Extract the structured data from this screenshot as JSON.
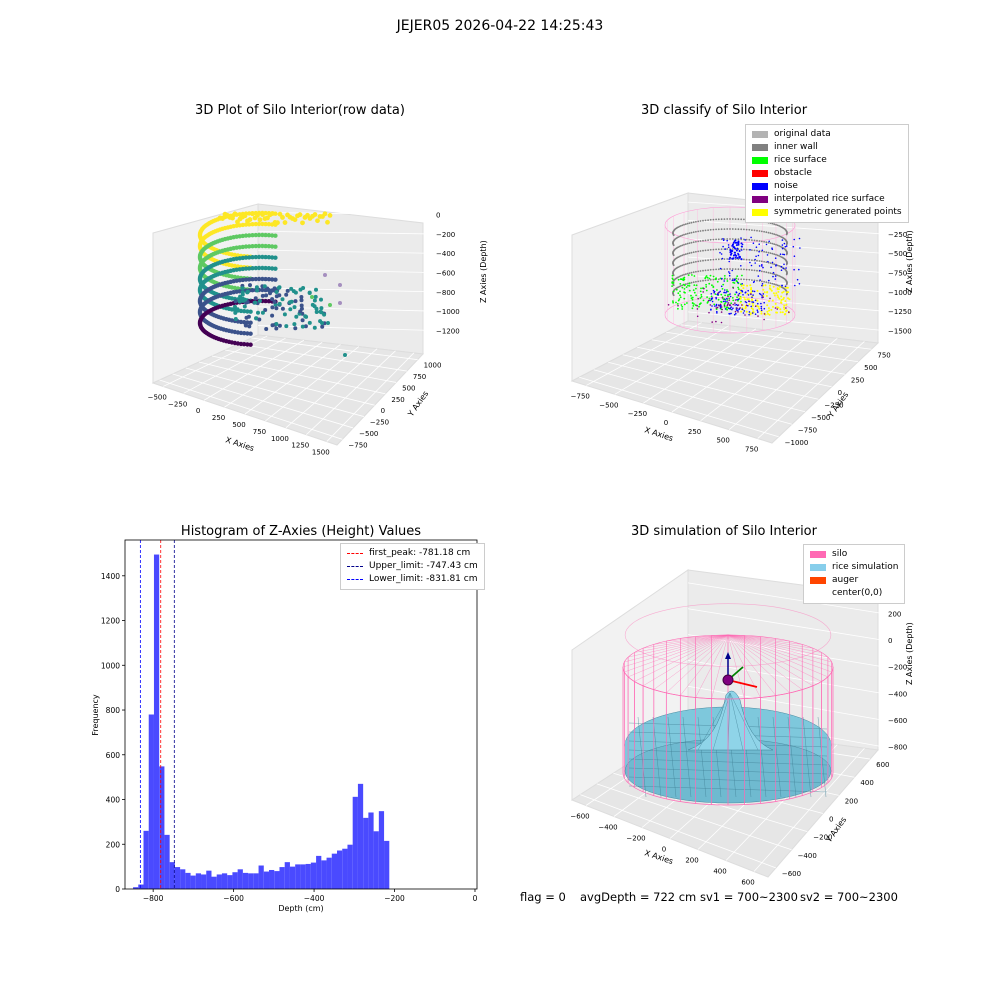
{
  "suptitle": "JEJER05 2026-04-22 14:25:43",
  "footer": {
    "flag": "flag = 0",
    "avg_depth": "avgDepth = 722 cm",
    "sv1": "sv1 = 700~2300",
    "sv2": "sv2 = 700~2300"
  },
  "chart_data": [
    {
      "type": "scatter",
      "title": "3D Plot of Silo Interior(row data)",
      "xlabel": "X Axies",
      "ylabel": "Y Axies",
      "zlabel": "Z Axies (Depth)",
      "x_ticks": [
        "−500",
        "−250",
        "0",
        "250",
        "500",
        "750",
        "1000",
        "1250",
        "1500"
      ],
      "y_ticks": [
        "−750",
        "−500",
        "−250",
        "0",
        "250",
        "500",
        "750",
        "1000"
      ],
      "z_ticks": [
        "0",
        "−200",
        "−400",
        "−600",
        "−800",
        "−1000",
        "−1200"
      ],
      "colormap": "viridis"
    },
    {
      "type": "scatter",
      "title": "3D classify of Silo Interior",
      "xlabel": "X Axies",
      "ylabel": "Y Axies",
      "zlabel": "Z Axies (Depth)",
      "x_ticks": [
        "−750",
        "−500",
        "−250",
        "0",
        "250",
        "500",
        "750"
      ],
      "y_ticks": [
        "−1000",
        "−750",
        "−500",
        "−250",
        "0",
        "250",
        "500",
        "750"
      ],
      "z_ticks": [
        "0",
        "−250",
        "−500",
        "−750",
        "−1000",
        "−1250",
        "−1500"
      ],
      "legend": [
        {
          "label": "original data",
          "color": "#b3b3b3"
        },
        {
          "label": "inner wall",
          "color": "#808080"
        },
        {
          "label": "rice surface",
          "color": "#00ff00"
        },
        {
          "label": "obstacle",
          "color": "#ff0000"
        },
        {
          "label": "noise",
          "color": "#0000ff"
        },
        {
          "label": "interpolated rice surface",
          "color": "#800080"
        },
        {
          "label": "symmetric generated points",
          "color": "#ffff00"
        }
      ],
      "legend_position": "top-right"
    },
    {
      "type": "bar",
      "title": "Histogram of Z-Axies (Height) Values",
      "xlabel": "Depth (cm)",
      "ylabel": "Frequency",
      "xlim": [
        -870,
        5
      ],
      "ylim": [
        0,
        1560
      ],
      "x_ticks": [
        -800,
        -600,
        -400,
        -200,
        0
      ],
      "y_ticks": [
        0,
        200,
        400,
        600,
        800,
        1000,
        1200,
        1400
      ],
      "bin_width": 13,
      "bin_start": -850,
      "values": [
        8,
        20,
        260,
        780,
        1495,
        548,
        242,
        120,
        98,
        88,
        72,
        60,
        70,
        65,
        82,
        55,
        65,
        70,
        62,
        75,
        88,
        72,
        70,
        70,
        105,
        78,
        85,
        80,
        98,
        120,
        100,
        110,
        110,
        112,
        118,
        148,
        128,
        140,
        158,
        172,
        180,
        198,
        412,
        470,
        318,
        342,
        258,
        348,
        215
      ],
      "bar_color": "#4a4aff",
      "vlines": [
        {
          "name": "first_peak: -781.18 cm",
          "x": -781.18,
          "color": "#ff0000"
        },
        {
          "name": "Upper_limit: -747.43 cm",
          "x": -747.43,
          "color": "#00008b"
        },
        {
          "name": "Lower_limit: -831.81 cm",
          "x": -831.81,
          "color": "#0000ff"
        }
      ],
      "legend_position": "top-right"
    },
    {
      "type": "surface",
      "title": "3D simulation of Silo Interior",
      "xlabel": "X Axies",
      "ylabel": "Y Axies",
      "zlabel": "Z Axies (Depth)",
      "x_ticks": [
        "−600",
        "−400",
        "−200",
        "0",
        "200",
        "400",
        "600"
      ],
      "y_ticks": [
        "−600",
        "−400",
        "−200",
        "0",
        "200",
        "400",
        "600"
      ],
      "z_ticks": [
        "200",
        "0",
        "−200",
        "−400",
        "−600",
        "−800"
      ],
      "legend": [
        {
          "label": "silo",
          "color": "#ff69b4"
        },
        {
          "label": "rice simulation",
          "color": "#87ceeb"
        },
        {
          "label": "auger",
          "color": "#ff4500"
        },
        {
          "label": "center(0,0)",
          "color": ""
        }
      ],
      "legend_position": "top-right"
    }
  ]
}
